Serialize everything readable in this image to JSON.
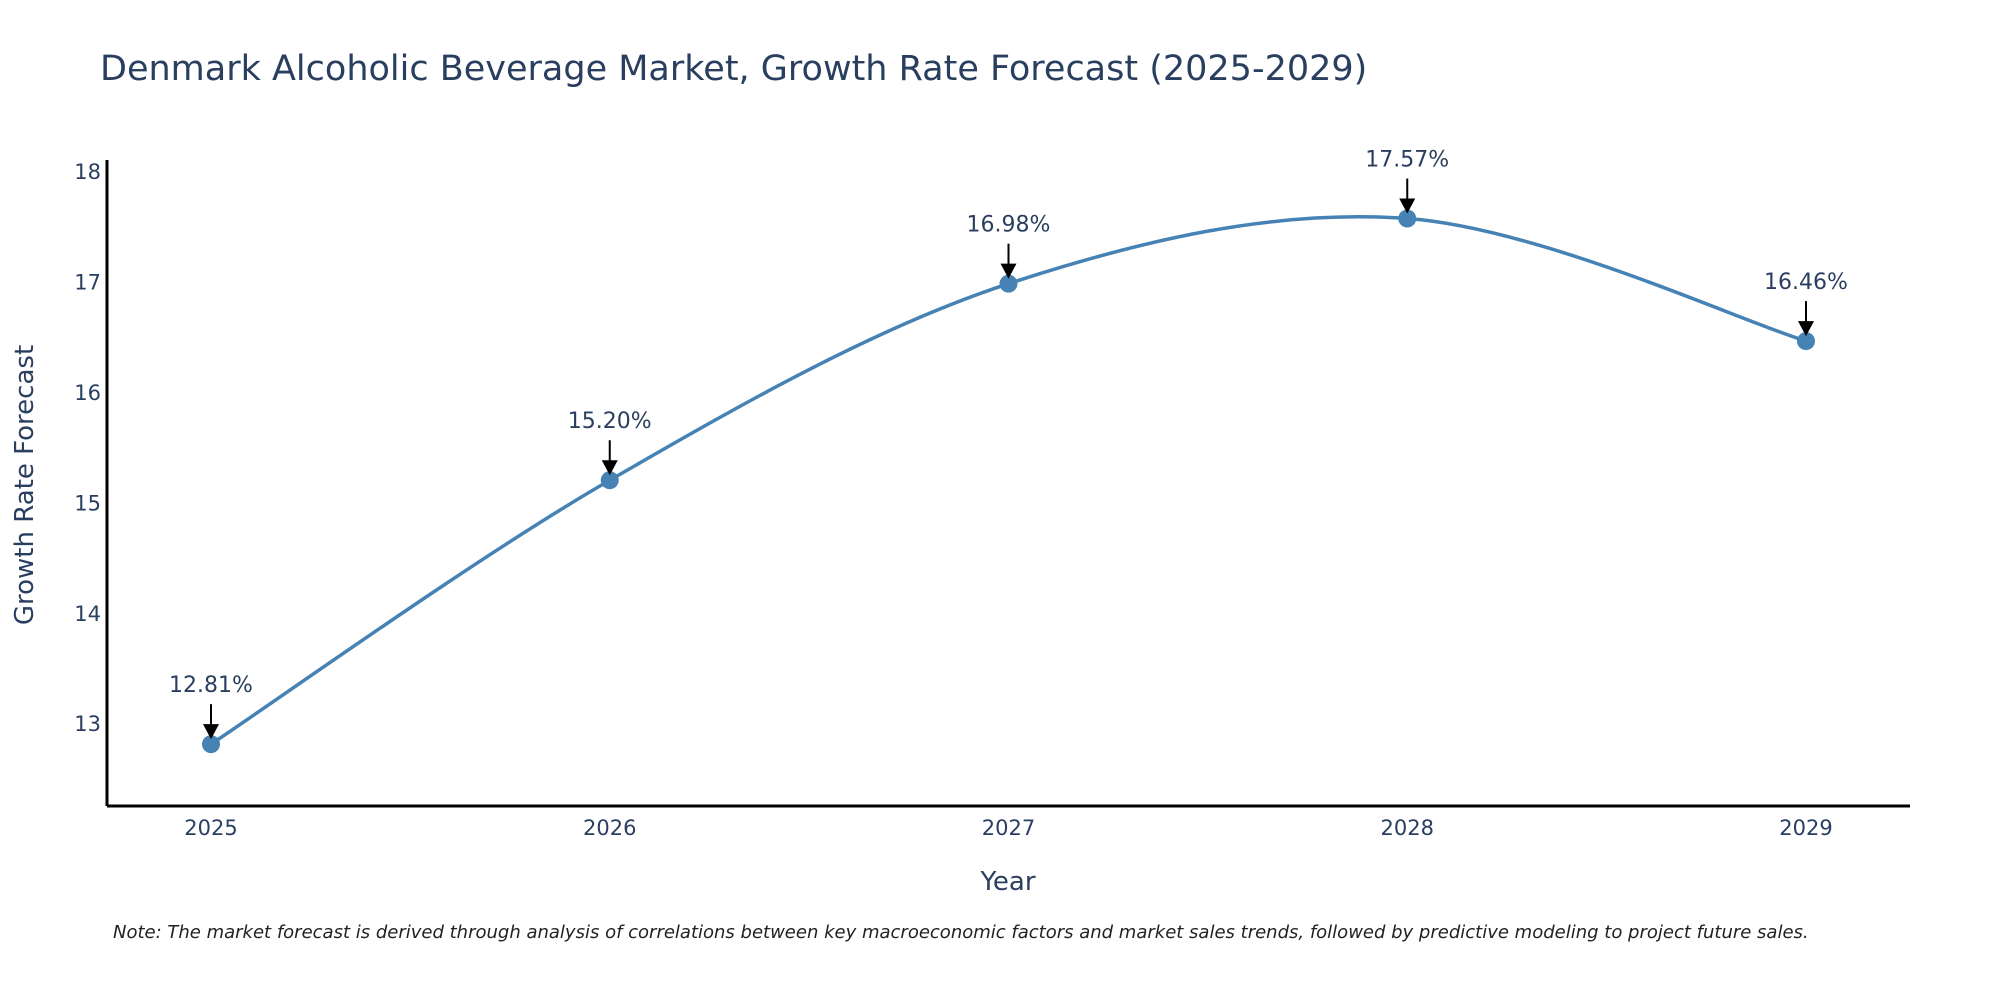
{
  "chart_data": {
    "type": "line",
    "title": "Denmark Alcoholic Beverage Market, Growth Rate Forecast (2025-2029)",
    "xlabel": "Year",
    "ylabel": "Growth Rate Forecast",
    "categories": [
      "2025",
      "2026",
      "2027",
      "2028",
      "2029"
    ],
    "values": [
      12.81,
      15.2,
      16.98,
      17.57,
      16.46
    ],
    "data_labels": [
      "12.81%",
      "15.20%",
      "16.98%",
      "17.57%",
      "16.46%"
    ],
    "yticks": [
      13,
      14,
      15,
      16,
      17,
      18
    ],
    "ylim": [
      12.25,
      18.1
    ],
    "line_shape": "spline",
    "grid": false,
    "legend": "none",
    "line_color": "#4682b4",
    "marker_color": "#4682b4",
    "annotation_arrow_color": "#000000",
    "axis_color": "#000000",
    "note": "Note: The market forecast is derived through analysis of correlations between key macroeconomic factors and market sales trends, followed by predictive modeling to project future sales."
  }
}
